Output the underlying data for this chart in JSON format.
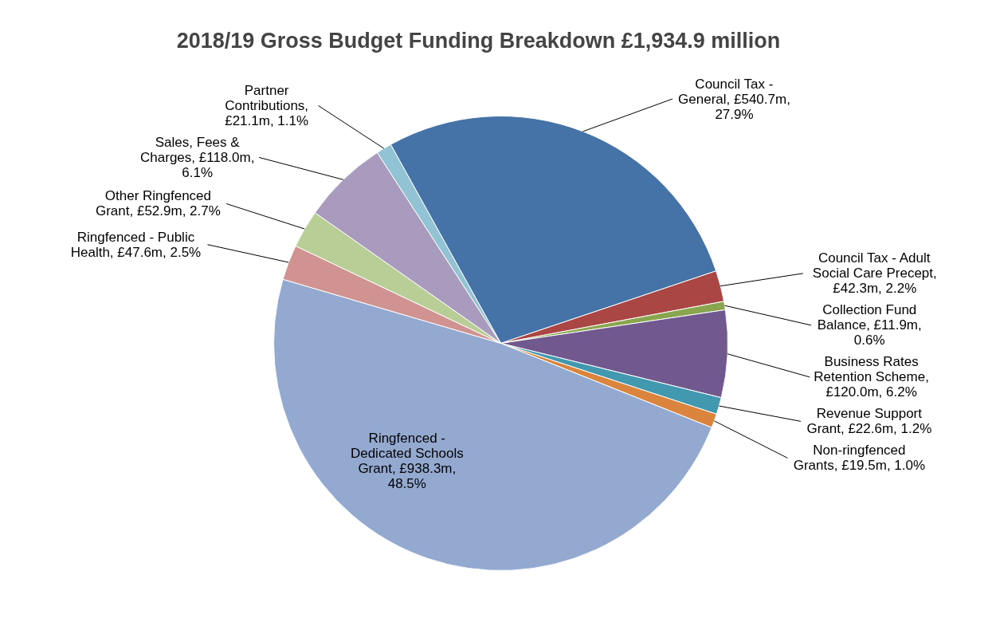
{
  "chart_data": {
    "type": "pie",
    "title": "2018/19 Gross Budget Funding Breakdown £1,934.9 million",
    "categories": [
      "Council Tax - General, £540.7m, 27.9%",
      "Council Tax - Adult Social Care Precept, £42.3m, 2.2%",
      "Collection Fund Balance, £11.9m, 0.6%",
      "Business Rates Retention Scheme, £120.0m, 6.2%",
      "Revenue Support Grant, £22.6m, 1.2%",
      "Non-ringfenced Grants, £19.5m, 1.0%",
      "Ringfenced - Dedicated Schools Grant, £938.3m, 48.5%",
      "Ringfenced - Public Health, £47.6m, 2.5%",
      "Other Ringfenced Grant, £52.9m, 2.7%",
      "Sales, Fees & Charges, £118.0m, 6.1%",
      "Partner Contributions, £21.1m, 1.1%"
    ],
    "values": [
      27.9,
      2.2,
      0.6,
      6.2,
      1.2,
      1.0,
      48.5,
      2.5,
      2.7,
      6.1,
      1.1
    ],
    "colors": [
      "#4572a7",
      "#aa4643",
      "#89a54e",
      "#71588f",
      "#4198af",
      "#db843d",
      "#93a9cf",
      "#d19392",
      "#b9cd96",
      "#a99bbd",
      "#92c3d4"
    ],
    "legend": false
  }
}
